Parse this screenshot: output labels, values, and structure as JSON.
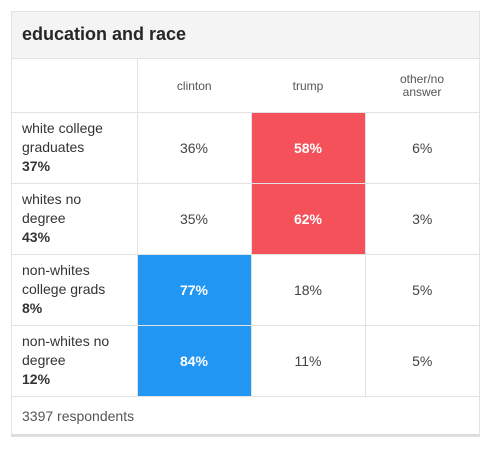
{
  "title": "education and race",
  "columns": [
    "clinton",
    "trump",
    "other/no answer"
  ],
  "rows": [
    {
      "group": "white college graduates",
      "share": "37%",
      "values": [
        "36%",
        "58%",
        "6%"
      ],
      "winner": "trump"
    },
    {
      "group": "whites no degree",
      "share": "43%",
      "values": [
        "35%",
        "62%",
        "3%"
      ],
      "winner": "trump"
    },
    {
      "group": "non-whites college grads",
      "share": "8%",
      "values": [
        "77%",
        "18%",
        "5%"
      ],
      "winner": "clinton"
    },
    {
      "group": "non-whites no degree",
      "share": "12%",
      "values": [
        "84%",
        "11%",
        "5%"
      ],
      "winner": "clinton"
    }
  ],
  "footer": "3397 respondents",
  "colors": {
    "clinton": "#2196f3",
    "trump": "#f5515a"
  }
}
